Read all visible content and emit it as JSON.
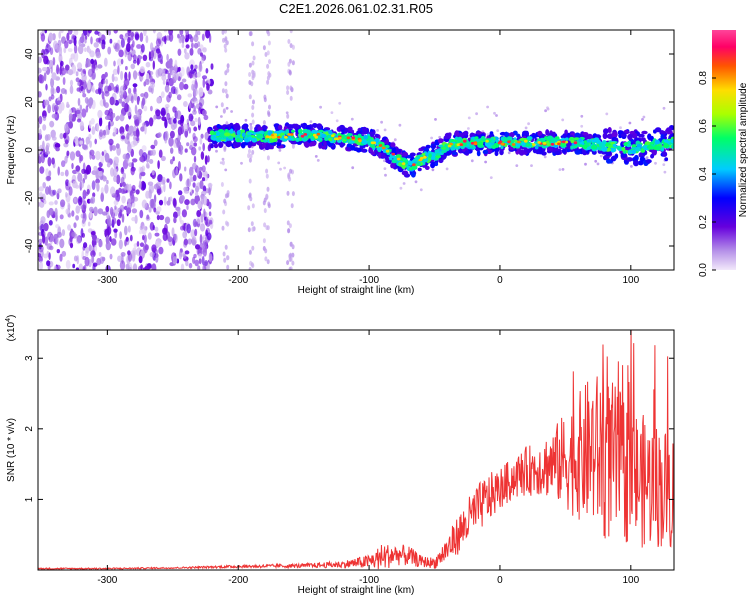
{
  "title": "C2E1.2026.061.02.31.R05",
  "chart_data": [
    {
      "type": "heatmap",
      "name": "spectrogram",
      "xlabel": "Height of straight line (km)",
      "ylabel": "Frequency (Hz)",
      "xlim": [
        -353,
        133
      ],
      "ylim": [
        -50,
        50
      ],
      "xticks": [
        -300,
        -200,
        -100,
        0,
        100
      ],
      "xtick_labels": [
        "-300",
        "-200",
        "-100",
        "0",
        "100"
      ],
      "yticks": [
        -40,
        -20,
        0,
        20,
        40
      ],
      "ytick_labels": [
        "-40",
        "-20",
        "0",
        "20",
        "40"
      ],
      "ridge": {
        "x": [
          -222,
          -200,
          -180,
          -160,
          -140,
          -120,
          -100,
          -90,
          -80,
          -70,
          -60,
          -50,
          -40,
          -30,
          -20,
          0,
          20,
          40,
          60,
          80,
          100,
          120,
          133
        ],
        "y": [
          6,
          6,
          5.5,
          6,
          6,
          5,
          4,
          1,
          -3,
          -7,
          -4,
          -2,
          2,
          3,
          3,
          3,
          3,
          3,
          3,
          2,
          1,
          2,
          3
        ]
      },
      "colorbar": {
        "label": "Normalized spectral amplitude",
        "range": [
          0,
          1
        ],
        "ticks": [
          0.0,
          0.2,
          0.4,
          0.6,
          0.8
        ],
        "tick_labels": [
          "0.0",
          "0.2",
          "0.4",
          "0.6",
          "0.8"
        ],
        "colors": [
          "#f2e8fa",
          "#6600dd",
          "#0000ff",
          "#00ccff",
          "#00ff66",
          "#aaff00",
          "#ffdd00",
          "#ff5500",
          "#ff0066",
          "#ff4499"
        ]
      }
    },
    {
      "type": "line",
      "name": "snr",
      "xlabel": "Height of straight line (km)",
      "ylabel": "SNR (10 * v/v)",
      "scale_label": "(x10",
      "scale_exponent": "4",
      "scale_suffix": ")",
      "xlim": [
        -353,
        133
      ],
      "ylim": [
        0,
        3.4
      ],
      "xticks": [
        -300,
        -200,
        -100,
        0,
        100
      ],
      "xtick_labels": [
        "-300",
        "-200",
        "-100",
        "0",
        "100"
      ],
      "yticks": [
        1,
        2,
        3
      ],
      "ytick_labels": [
        "1",
        "2",
        "3"
      ],
      "color": "#ee3333",
      "x": [
        -353,
        -300,
        -250,
        -200,
        -150,
        -120,
        -100,
        -90,
        -80,
        -70,
        -60,
        -50,
        -40,
        -30,
        -20,
        -10,
        0,
        10,
        20,
        30,
        40,
        50,
        60,
        70,
        80,
        90,
        100,
        110,
        120,
        133
      ],
      "y": [
        0.02,
        0.02,
        0.03,
        0.05,
        0.06,
        0.08,
        0.12,
        0.18,
        0.22,
        0.2,
        0.12,
        0.1,
        0.3,
        0.55,
        0.8,
        1.0,
        1.15,
        1.3,
        1.4,
        1.45,
        1.5,
        1.55,
        1.6,
        1.7,
        1.6,
        1.5,
        1.35,
        1.25,
        1.2,
        1.1
      ],
      "spread": [
        0.01,
        0.01,
        0.01,
        0.02,
        0.03,
        0.05,
        0.1,
        0.2,
        0.15,
        0.15,
        0.08,
        0.08,
        0.2,
        0.3,
        0.35,
        0.35,
        0.3,
        0.3,
        0.35,
        0.4,
        0.5,
        0.7,
        0.9,
        1.1,
        1.2,
        1.1,
        1.0,
        0.95,
        0.9,
        0.85
      ]
    }
  ]
}
